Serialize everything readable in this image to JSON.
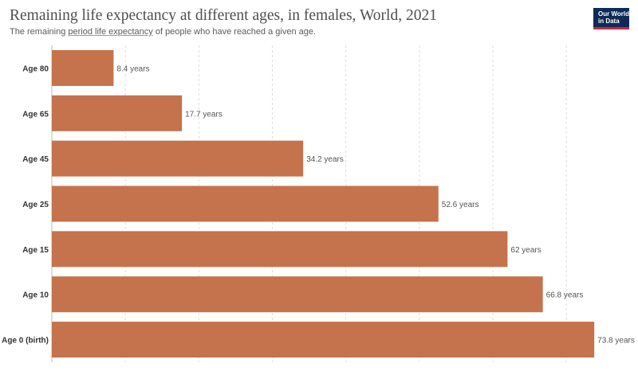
{
  "header": {
    "title": "Remaining life expectancy at different ages, in females, World, 2021",
    "subtitle_prefix": "The remaining ",
    "subtitle_link": "period life expectancy",
    "subtitle_suffix": " of people who have reached a given age."
  },
  "logo": {
    "line1": "Our World",
    "line2": "in Data"
  },
  "chart_data": {
    "type": "bar",
    "orientation": "horizontal",
    "categories": [
      "Age 80",
      "Age 65",
      "Age 45",
      "Age 25",
      "Age 15",
      "Age 10",
      "Age 0 (birth)"
    ],
    "values": [
      8.4,
      17.7,
      34.2,
      52.6,
      62,
      66.8,
      73.8
    ],
    "data_labels": [
      "8.4 years",
      "17.7 years",
      "34.2 years",
      "52.6 years",
      "62 years",
      "66.8 years",
      "73.8 years"
    ],
    "unit": "years",
    "xlim": [
      0,
      74
    ],
    "grid": true,
    "bar_color": "#c4734c"
  }
}
